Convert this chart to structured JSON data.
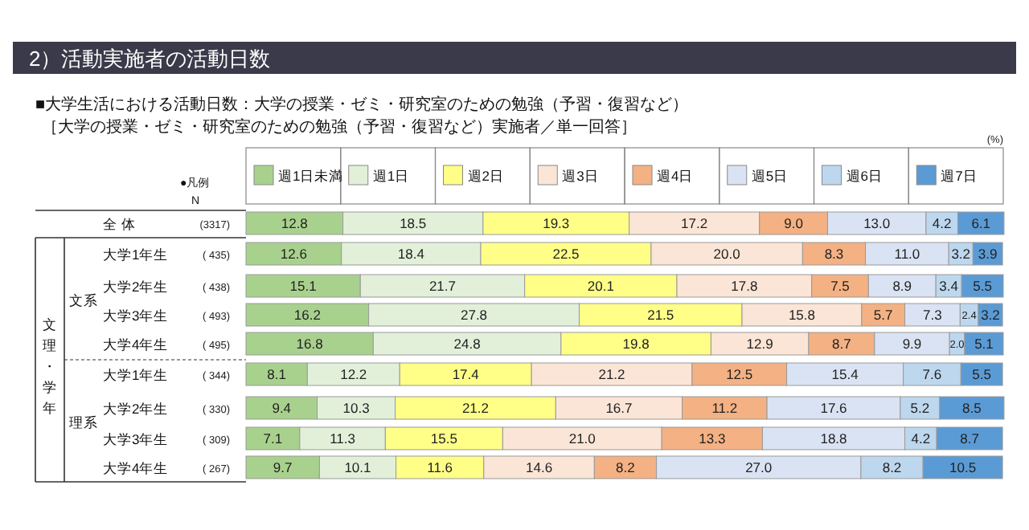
{
  "chart_data": {
    "type": "bar",
    "orientation": "horizontal",
    "stacked": true,
    "title": "2）活動実施者の活動日数",
    "subtitle": "■大学生活における活動日数：大学の授業・ゼミ・研究室のための勉強（予習・復習など）",
    "annotations": [
      "［大学の授業・ゼミ・研究室のための勉強（予習・復習など）実施者／単一回答］",
      "(%)",
      "●凡例",
      "N",
      "文系",
      "理系",
      "文理・学年",
      "(3317)",
      "( 435)",
      "( 438)",
      "( 493)",
      "( 495)",
      "( 344)",
      "( 330)",
      "( 309)",
      "( 267)"
    ],
    "categories": [
      "全 体",
      "大学1年生",
      "大学2年生",
      "大学3年生",
      "大学4年生",
      "大学1年生",
      "大学2年生",
      "大学3年生",
      "大学4年生"
    ],
    "xlim": [
      0,
      100
    ],
    "tick_labels": "y",
    "legend": "top",
    "series": [
      {
        "name": "週1日未満",
        "color": "#a9d18e",
        "values": [
          12.8,
          12.6,
          15.1,
          16.2,
          16.8,
          8.1,
          9.4,
          7.1,
          9.7
        ],
        "value_labels": [
          "12.8",
          "12.6",
          "15.1",
          "16.2",
          "16.8",
          "8.1",
          "9.4",
          "7.1",
          "9.7"
        ]
      },
      {
        "name": "週1日",
        "color": "#e2f0d9",
        "values": [
          18.5,
          18.4,
          21.7,
          27.8,
          24.8,
          12.2,
          10.3,
          11.3,
          10.1
        ],
        "value_labels": [
          "18.5",
          "18.4",
          "21.7",
          "27.8",
          "24.8",
          "12.2",
          "10.3",
          "11.3",
          "10.1"
        ]
      },
      {
        "name": "週2日",
        "color": "#ffff88",
        "values": [
          19.3,
          22.5,
          20.1,
          21.5,
          19.8,
          17.4,
          21.2,
          15.5,
          11.6
        ],
        "value_labels": [
          "19.3",
          "22.5",
          "20.1",
          "21.5",
          "19.8",
          "17.4",
          "21.2",
          "15.5",
          "11.6"
        ]
      },
      {
        "name": "週3日",
        "color": "#fbe5d6",
        "values": [
          17.2,
          20.0,
          17.8,
          15.8,
          12.9,
          21.2,
          16.7,
          21.0,
          14.6
        ],
        "value_labels": [
          "17.2",
          "20.0",
          "17.8",
          "15.8",
          "12.9",
          "21.2",
          "16.7",
          "21.0",
          "14.6"
        ]
      },
      {
        "name": "週4日",
        "color": "#f4b183",
        "values": [
          9.0,
          8.3,
          7.5,
          5.7,
          8.7,
          12.5,
          11.2,
          13.3,
          8.2
        ],
        "value_labels": [
          "9.0",
          "8.3",
          "7.5",
          "5.7",
          "8.7",
          "12.5",
          "11.2",
          "13.3",
          "8.2"
        ]
      },
      {
        "name": "週5日",
        "color": "#dae3f3",
        "values": [
          13.0,
          11.0,
          8.9,
          7.3,
          9.9,
          15.4,
          17.6,
          18.8,
          27.0
        ],
        "value_labels": [
          "13.0",
          "11.0",
          "8.9",
          "7.3",
          "9.9",
          "15.4",
          "17.6",
          "18.8",
          "27.0"
        ]
      },
      {
        "name": "週6日",
        "color": "#bdd7ee",
        "values": [
          4.2,
          3.2,
          3.4,
          2.4,
          2.0,
          7.6,
          5.2,
          4.2,
          8.2
        ],
        "value_labels": [
          "4.2",
          "3.2",
          "3.4",
          "2.4",
          "2.0",
          "7.6",
          "5.2",
          "4.2",
          "8.2"
        ]
      },
      {
        "name": "週7日",
        "color": "#5b9bd5",
        "values": [
          6.1,
          3.9,
          5.5,
          3.2,
          5.1,
          5.5,
          8.5,
          8.7,
          10.5
        ],
        "value_labels": [
          "6.1",
          "3.9",
          "5.5",
          "3.2",
          "5.1",
          "5.5",
          "8.5",
          "8.7",
          "10.5"
        ]
      }
    ]
  }
}
